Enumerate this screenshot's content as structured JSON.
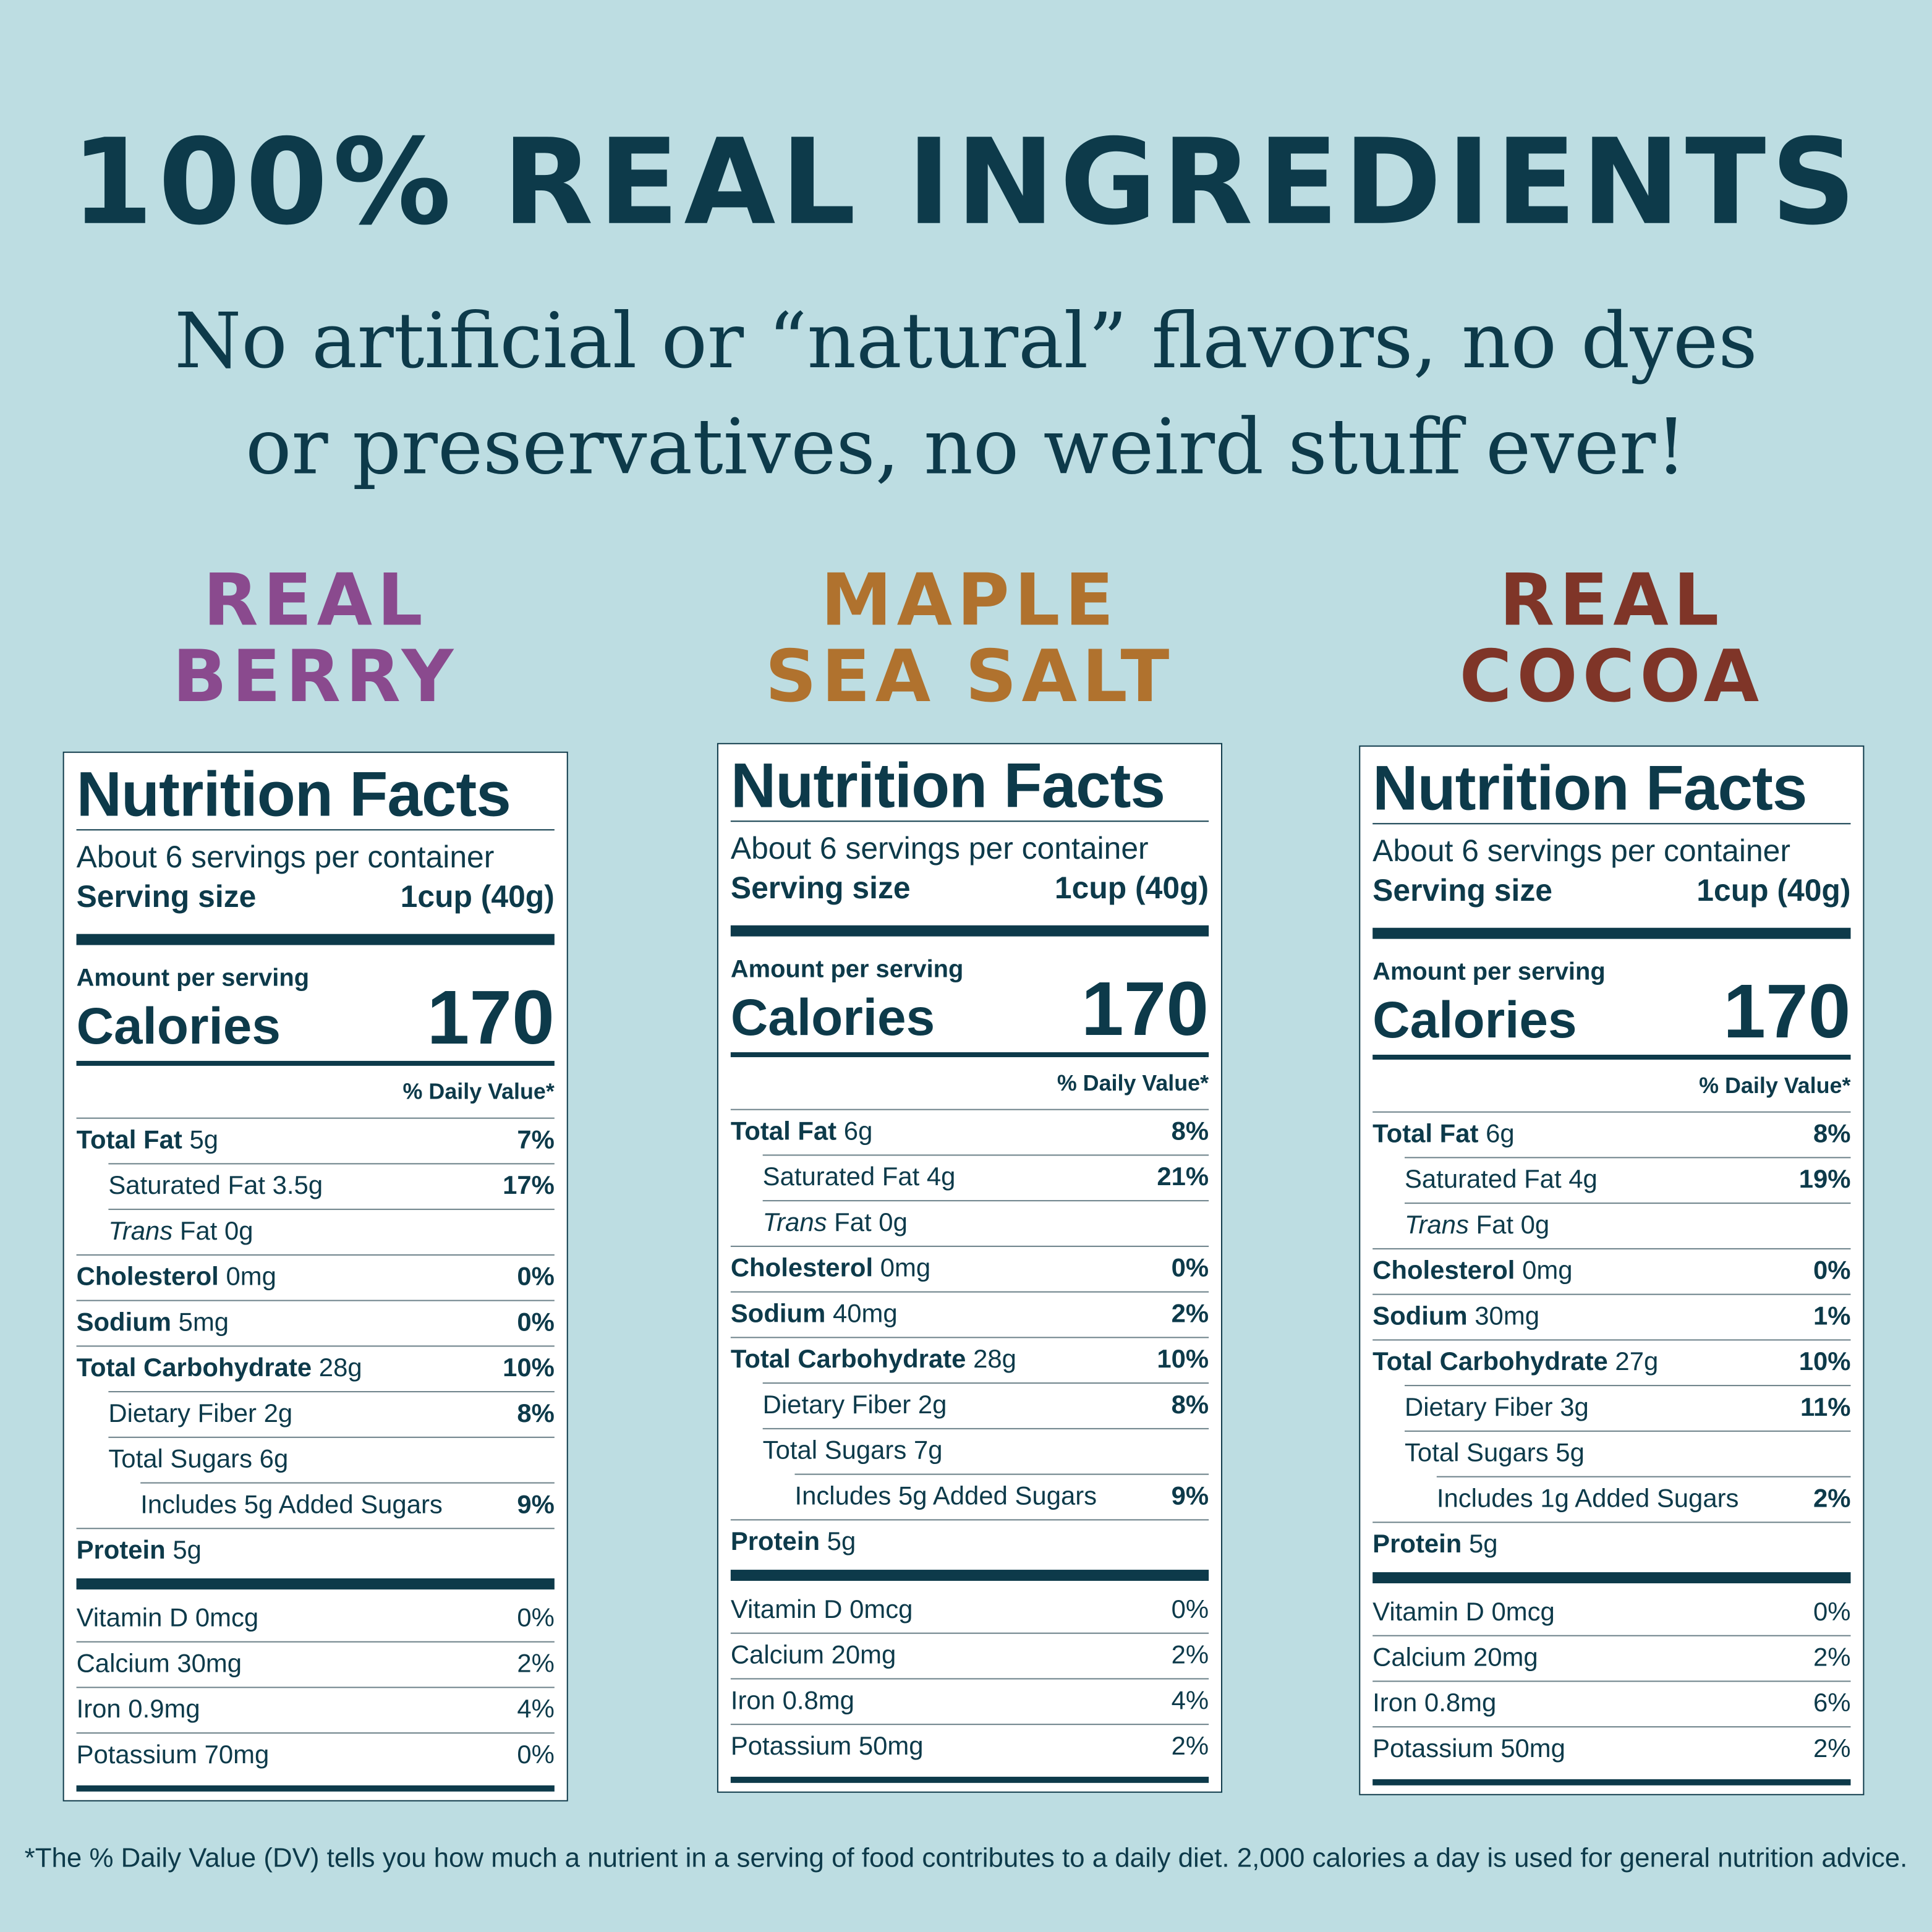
{
  "header": {
    "title": "100% REAL INGREDIENTS",
    "subtitle": [
      "No artificial or “natural” flavors, no dyes",
      "or preservatives, no weird stuff ever!"
    ]
  },
  "panels": [
    {
      "name": [
        "REAL",
        "BERRY"
      ],
      "color": "#8a4a8e",
      "facts": {
        "title": "Nutrition Facts",
        "servings": "About 6 servings per container",
        "serving_label": "Serving size",
        "serving_size": "1cup (40g)",
        "amount_label": "Amount per serving",
        "calories_label": "Calories",
        "calories": 170,
        "dv_header": "% Daily Value*",
        "nutrients": [
          {
            "label": "Total Fat",
            "amount": "5g",
            "dv": "7%"
          },
          {
            "label": "Saturated Fat",
            "amount": "3.5g",
            "dv": "17%"
          },
          {
            "label_italic": "Trans",
            "label": "Fat",
            "amount": "0g"
          },
          {
            "label": "Cholesterol",
            "amount": "0mg",
            "dv": "0%"
          },
          {
            "label": "Sodium",
            "amount": "5mg",
            "dv": "0%"
          },
          {
            "label": "Total Carbohydrate",
            "amount": "28g",
            "dv": "10%"
          },
          {
            "label": "Dietary Fiber",
            "amount": "2g",
            "dv": "8%"
          },
          {
            "label": "Total Sugars",
            "amount": "6g"
          },
          {
            "label": "Includes 5g Added Sugars",
            "dv": "9%"
          },
          {
            "label": "Protein",
            "amount": "5g"
          }
        ],
        "vitamins": [
          {
            "label": "Vitamin D 0mcg",
            "dv": "0%"
          },
          {
            "label": "Calcium 30mg",
            "dv": "2%"
          },
          {
            "label": "Iron 0.9mg",
            "dv": "4%"
          },
          {
            "label": "Potassium 70mg",
            "dv": "0%"
          }
        ]
      }
    },
    {
      "name": [
        "MAPLE",
        "SEA SALT"
      ],
      "color": "#b0722e",
      "facts": {
        "title": "Nutrition Facts",
        "servings": "About 6 servings per container",
        "serving_label": "Serving size",
        "serving_size": "1cup (40g)",
        "amount_label": "Amount per serving",
        "calories_label": "Calories",
        "calories": 170,
        "dv_header": "% Daily Value*",
        "nutrients": [
          {
            "label": "Total Fat",
            "amount": "6g",
            "dv": "8%"
          },
          {
            "label": "Saturated Fat",
            "amount": "4g",
            "dv": "21%"
          },
          {
            "label_italic": "Trans",
            "label": "Fat",
            "amount": "0g"
          },
          {
            "label": "Cholesterol",
            "amount": "0mg",
            "dv": "0%"
          },
          {
            "label": "Sodium",
            "amount": "40mg",
            "dv": "2%"
          },
          {
            "label": "Total Carbohydrate",
            "amount": "28g",
            "dv": "10%"
          },
          {
            "label": "Dietary Fiber",
            "amount": "2g",
            "dv": "8%"
          },
          {
            "label": "Total Sugars",
            "amount": "7g"
          },
          {
            "label": "Includes 5g Added Sugars",
            "dv": "9%"
          },
          {
            "label": "Protein",
            "amount": "5g"
          }
        ],
        "vitamins": [
          {
            "label": "Vitamin D 0mcg",
            "dv": "0%"
          },
          {
            "label": "Calcium 20mg",
            "dv": "2%"
          },
          {
            "label": "Iron 0.8mg",
            "dv": "4%"
          },
          {
            "label": "Potassium 50mg",
            "dv": "2%"
          }
        ]
      }
    },
    {
      "name": [
        "REAL",
        "COCOA"
      ],
      "color": "#7f3528",
      "facts": {
        "title": "Nutrition Facts",
        "servings": "About 6 servings per container",
        "serving_label": "Serving size",
        "serving_size": "1cup (40g)",
        "amount_label": "Amount per serving",
        "calories_label": "Calories",
        "calories": 170,
        "dv_header": "% Daily Value*",
        "nutrients": [
          {
            "label": "Total Fat",
            "amount": "6g",
            "dv": "8%"
          },
          {
            "label": "Saturated Fat",
            "amount": "4g",
            "dv": "19%"
          },
          {
            "label_italic": "Trans",
            "label": "Fat",
            "amount": "0g"
          },
          {
            "label": "Cholesterol",
            "amount": "0mg",
            "dv": "0%"
          },
          {
            "label": "Sodium",
            "amount": "30mg",
            "dv": "1%"
          },
          {
            "label": "Total Carbohydrate",
            "amount": "27g",
            "dv": "10%"
          },
          {
            "label": "Dietary Fiber",
            "amount": "3g",
            "dv": "11%"
          },
          {
            "label": "Total Sugars",
            "amount": "5g"
          },
          {
            "label": "Includes 1g Added Sugars",
            "dv": "2%"
          },
          {
            "label": "Protein",
            "amount": "5g"
          }
        ],
        "vitamins": [
          {
            "label": "Vitamin D 0mcg",
            "dv": "0%"
          },
          {
            "label": "Calcium 20mg",
            "dv": "2%"
          },
          {
            "label": "Iron 0.8mg",
            "dv": "6%"
          },
          {
            "label": "Potassium 50mg",
            "dv": "2%"
          }
        ]
      }
    }
  ],
  "footnote": "*The % Daily Value (DV) tells you how much a nutrient in a serving of food contributes to a daily diet. 2,000 calories a day is used for general nutrition advice."
}
